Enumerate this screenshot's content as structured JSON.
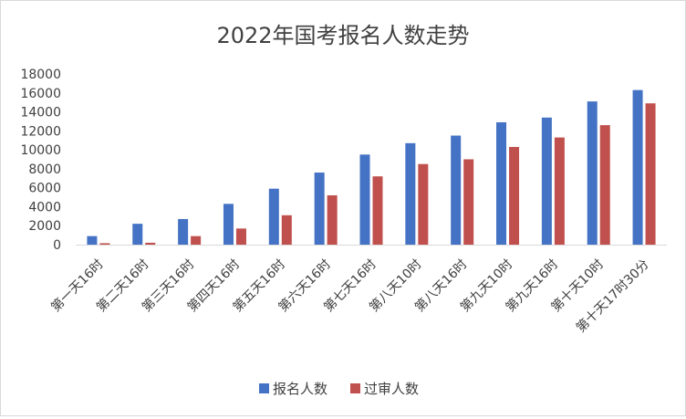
{
  "chart_data": {
    "type": "bar",
    "title": "2022年国考报名人数走势",
    "xlabel": "",
    "ylabel": "",
    "ylim": [
      0,
      18000
    ],
    "yticks": [
      0,
      2000,
      4000,
      6000,
      8000,
      10000,
      12000,
      14000,
      16000,
      18000
    ],
    "grid": false,
    "legend_position": "bottom",
    "categories": [
      "第一天16时",
      "第二天16时",
      "第三天16时",
      "第四天16时",
      "第五天16时",
      "第六天16时",
      "第七天16时",
      "第八天10时",
      "第八天16时",
      "第九天10时",
      "第九天16时",
      "第十天10时",
      "第十天17时30分"
    ],
    "series": [
      {
        "name": "报名人数",
        "color": "#4472c4",
        "values": [
          900,
          2200,
          2700,
          4300,
          5900,
          7600,
          9500,
          10700,
          11500,
          12900,
          13400,
          15100,
          16300
        ]
      },
      {
        "name": "过审人数",
        "color": "#c0504d",
        "values": [
          150,
          200,
          900,
          1700,
          3100,
          5200,
          7200,
          8500,
          9000,
          10300,
          11300,
          12600,
          14900
        ]
      }
    ]
  }
}
